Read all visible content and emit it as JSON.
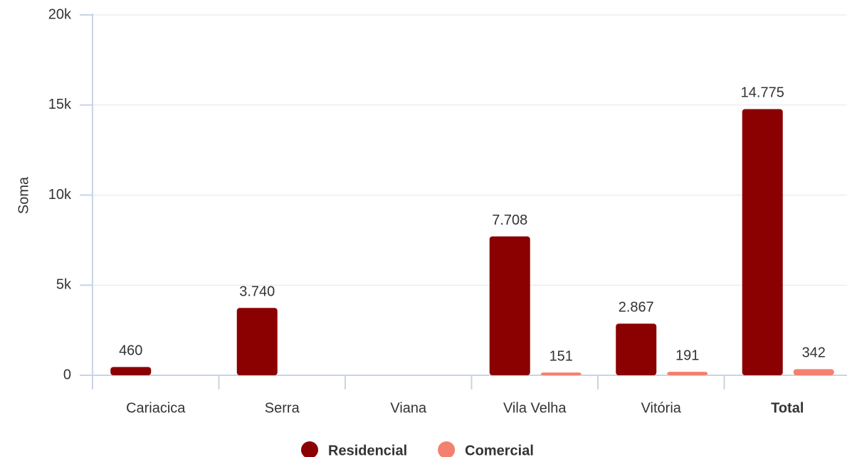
{
  "chart_data": {
    "type": "bar",
    "y_label": "Soma",
    "categories": [
      "Cariacica",
      "Serra",
      "Viana",
      "Vila Velha",
      "Vitória",
      "Total"
    ],
    "series": [
      {
        "name": "Residencial",
        "color": "#8b0000",
        "values": [
          460,
          3740,
          null,
          7708,
          2867,
          14775
        ],
        "value_labels": [
          "460",
          "3.740",
          null,
          "7.708",
          "2.867",
          "14.775"
        ]
      },
      {
        "name": "Comercial",
        "color": "#f4806f",
        "values": [
          null,
          null,
          null,
          151,
          191,
          342
        ],
        "value_labels": [
          null,
          null,
          null,
          "151",
          "191",
          "342"
        ]
      }
    ],
    "ylim": [
      0,
      20000
    ],
    "yticks": [
      0,
      {
        "value": 5000,
        "label": "5k"
      },
      {
        "value": 10000,
        "label": "10k"
      },
      {
        "value": 15000,
        "label": "15k"
      },
      {
        "value": 20000,
        "label": "20k"
      }
    ],
    "grid": true
  }
}
